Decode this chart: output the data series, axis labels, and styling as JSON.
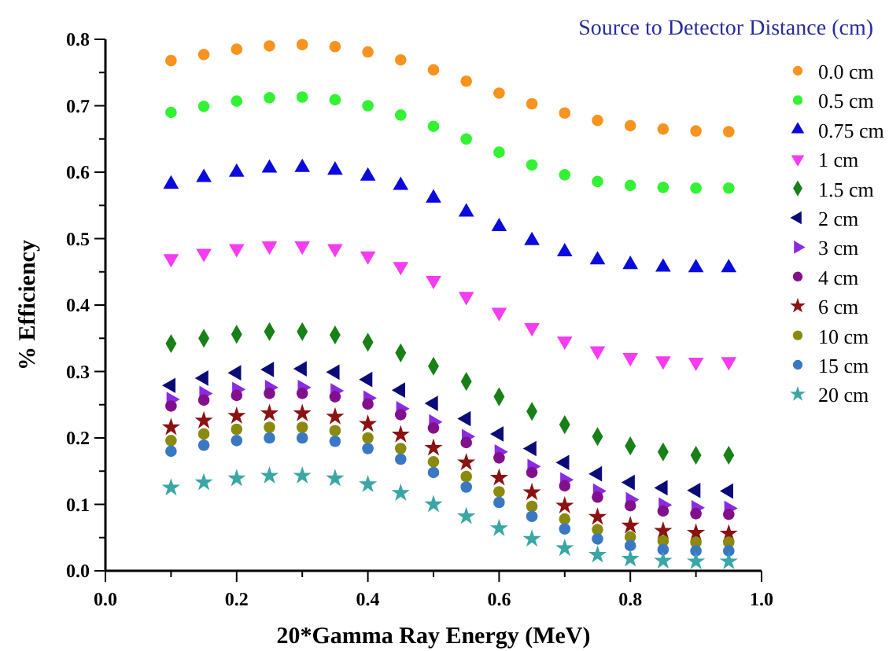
{
  "chart_data": {
    "type": "scatter",
    "xlabel": "20*Gamma Ray Energy (MeV)",
    "ylabel": "% Efficiency",
    "legend_title": "Source to Detector Distance (cm)",
    "legend": "top right",
    "grid": false,
    "xlim": [
      0,
      1
    ],
    "ylim": [
      0,
      0.8
    ],
    "xticks": [
      {
        "value": 0,
        "label": "0.0"
      },
      {
        "value": 0.1,
        "label": null
      },
      0.2,
      {
        "value": 0.3,
        "label": null
      },
      0.4,
      {
        "value": 0.5,
        "label": null
      },
      0.6,
      {
        "value": 0.7,
        "label": null
      },
      0.8,
      {
        "value": 0.9,
        "label": null
      },
      {
        "value": 1,
        "label": "1.0"
      }
    ],
    "yticks": [
      {
        "value": 0,
        "label": "0.0"
      },
      {
        "value": 0.05,
        "label": null
      },
      0.1,
      {
        "value": 0.15,
        "label": null
      },
      0.2,
      {
        "value": 0.25,
        "label": null
      },
      0.3,
      {
        "value": 0.35,
        "label": null
      },
      0.4,
      {
        "value": 0.45,
        "label": null
      },
      0.5,
      {
        "value": 0.55,
        "label": null
      },
      0.6,
      {
        "value": 0.65,
        "label": null
      },
      0.7,
      {
        "value": 0.75,
        "label": null
      },
      0.8
    ],
    "x": [
      0.1,
      0.15,
      0.2,
      0.25,
      0.3,
      0.35,
      0.4,
      0.45,
      0.5,
      0.55,
      0.6,
      0.65,
      0.7,
      0.75,
      0.8,
      0.85,
      0.9,
      0.95
    ],
    "series": [
      {
        "name": "0.0 cm",
        "color": "#f7931e",
        "marker": "circle",
        "values": [
          0.768,
          0.777,
          0.785,
          0.79,
          0.792,
          0.789,
          0.781,
          0.769,
          0.754,
          0.737,
          0.719,
          0.703,
          0.689,
          0.678,
          0.67,
          0.665,
          0.662,
          0.661
        ]
      },
      {
        "name": "0.5 cm",
        "color": "#33f233",
        "marker": "circle",
        "values": [
          0.69,
          0.699,
          0.707,
          0.712,
          0.713,
          0.709,
          0.7,
          0.686,
          0.669,
          0.65,
          0.63,
          0.611,
          0.596,
          0.586,
          0.58,
          0.577,
          0.576,
          0.576
        ]
      },
      {
        "name": "0.75 cm",
        "color": "#0a0adc",
        "marker": "triangle",
        "values": [
          0.582,
          0.592,
          0.6,
          0.606,
          0.607,
          0.603,
          0.594,
          0.58,
          0.561,
          0.54,
          0.518,
          0.497,
          0.48,
          0.468,
          0.461,
          0.457,
          0.456,
          0.456
        ]
      },
      {
        "name": "1 cm",
        "color": "#f53cf0",
        "marker": "triangle-down",
        "values": [
          0.47,
          0.478,
          0.485,
          0.489,
          0.489,
          0.485,
          0.474,
          0.458,
          0.437,
          0.413,
          0.389,
          0.366,
          0.346,
          0.331,
          0.321,
          0.316,
          0.314,
          0.315
        ]
      },
      {
        "name": "1.5 cm",
        "color": "#178017",
        "marker": "diamond",
        "values": [
          0.342,
          0.35,
          0.356,
          0.36,
          0.36,
          0.355,
          0.344,
          0.328,
          0.308,
          0.285,
          0.262,
          0.24,
          0.22,
          0.202,
          0.188,
          0.179,
          0.174,
          0.174
        ]
      },
      {
        "name": "2 cm",
        "color": "#0b0b78",
        "marker": "triangle-left",
        "values": [
          0.279,
          0.29,
          0.298,
          0.303,
          0.304,
          0.299,
          0.288,
          0.272,
          0.252,
          0.229,
          0.206,
          0.184,
          0.163,
          0.146,
          0.133,
          0.125,
          0.121,
          0.12
        ]
      },
      {
        "name": "3 cm",
        "color": "#8a2be2",
        "marker": "triangle-right",
        "values": [
          0.258,
          0.267,
          0.273,
          0.276,
          0.276,
          0.271,
          0.26,
          0.244,
          0.224,
          0.202,
          0.179,
          0.157,
          0.137,
          0.12,
          0.107,
          0.099,
          0.095,
          0.094
        ]
      },
      {
        "name": "4 cm",
        "color": "#820f8c",
        "marker": "circle",
        "values": [
          0.248,
          0.257,
          0.264,
          0.267,
          0.267,
          0.262,
          0.251,
          0.235,
          0.215,
          0.193,
          0.17,
          0.148,
          0.128,
          0.111,
          0.098,
          0.09,
          0.086,
          0.085
        ]
      },
      {
        "name": "6 cm",
        "color": "#8b1212",
        "marker": "star",
        "values": [
          0.216,
          0.226,
          0.233,
          0.237,
          0.237,
          0.232,
          0.221,
          0.205,
          0.185,
          0.163,
          0.14,
          0.118,
          0.098,
          0.081,
          0.068,
          0.06,
          0.057,
          0.056
        ]
      },
      {
        "name": "10 cm",
        "color": "#8a8a0f",
        "marker": "circle",
        "values": [
          0.196,
          0.206,
          0.213,
          0.216,
          0.216,
          0.211,
          0.2,
          0.184,
          0.164,
          0.142,
          0.119,
          0.097,
          0.078,
          0.062,
          0.051,
          0.045,
          0.043,
          0.043
        ]
      },
      {
        "name": "15 cm",
        "color": "#3a78c4",
        "marker": "circle",
        "values": [
          0.18,
          0.189,
          0.196,
          0.2,
          0.2,
          0.195,
          0.184,
          0.168,
          0.148,
          0.126,
          0.103,
          0.082,
          0.063,
          0.048,
          0.038,
          0.032,
          0.03,
          0.03
        ]
      },
      {
        "name": "20 cm",
        "color": "#3aa6a6",
        "marker": "star",
        "values": [
          0.125,
          0.133,
          0.139,
          0.143,
          0.143,
          0.139,
          0.13,
          0.117,
          0.1,
          0.082,
          0.064,
          0.048,
          0.034,
          0.024,
          0.018,
          0.015,
          0.014,
          0.014
        ]
      }
    ]
  }
}
